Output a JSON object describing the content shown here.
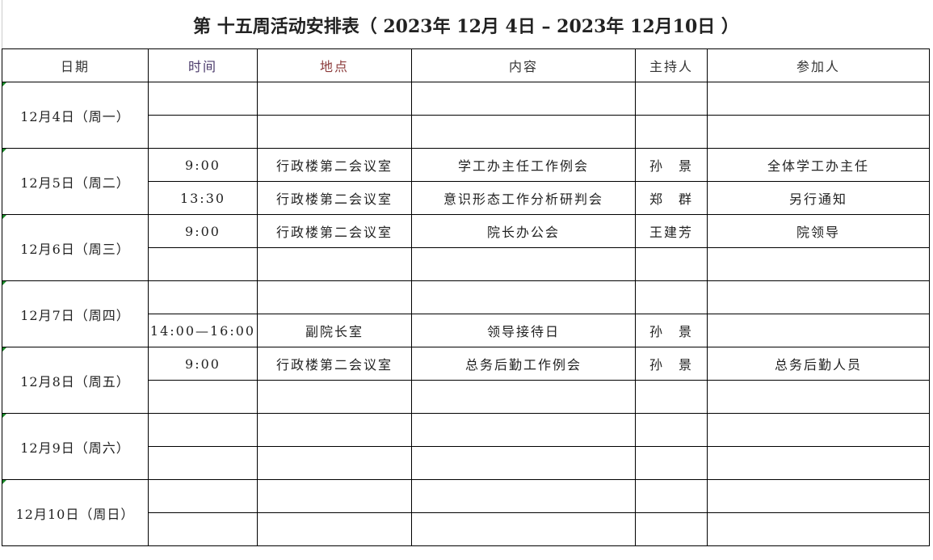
{
  "title": "第 十五周活动安排表（ 2023年 12月 4日 – 2023年 12月10日 ）",
  "headers": [
    "日期",
    "时间",
    "地点",
    "内容",
    "主持人",
    "参加人"
  ],
  "header_colors": [
    "#333333",
    "#4b3b6b",
    "#8b3a3a",
    "#333333",
    "#333333",
    "#333333"
  ],
  "days": [
    {
      "date": "12月4日（周一）",
      "slots": [
        [
          "",
          "",
          "",
          "",
          ""
        ],
        [
          "",
          "",
          "",
          "",
          ""
        ]
      ]
    },
    {
      "date": "12月5日（周二）",
      "slots": [
        [
          "9:00",
          "行政楼第二会议室",
          "学工办主任工作例会",
          "孙　景",
          "全体学工办主任"
        ],
        [
          "13:30",
          "行政楼第二会议室",
          "意识形态工作分析研判会",
          "郑　群",
          "另行通知"
        ]
      ]
    },
    {
      "date": "12月6日（周三）",
      "slots": [
        [
          "9:00",
          "行政楼第二会议室",
          "院长办公会",
          "王建芳",
          "院领导"
        ],
        [
          "",
          "",
          "",
          "",
          ""
        ]
      ]
    },
    {
      "date": "12月7日（周四）",
      "slots": [
        [
          "",
          "",
          "",
          "",
          ""
        ],
        [
          "14:00—16:00",
          "副院长室",
          "领导接待日",
          "孙　景",
          ""
        ]
      ]
    },
    {
      "date": "12月8日（周五）",
      "slots": [
        [
          "9:00",
          "行政楼第二会议室",
          "总务后勤工作例会",
          "孙　景",
          "总务后勤人员"
        ],
        [
          "",
          "",
          "",
          "",
          ""
        ]
      ]
    },
    {
      "date": "12月9日（周六）",
      "slots": [
        [
          "",
          "",
          "",
          "",
          ""
        ],
        [
          "",
          "",
          "",
          "",
          ""
        ]
      ]
    },
    {
      "date": "12月10日（周日）",
      "slots": [
        [
          "",
          "",
          "",
          "",
          ""
        ],
        [
          "",
          "",
          "",
          "",
          ""
        ]
      ]
    }
  ]
}
